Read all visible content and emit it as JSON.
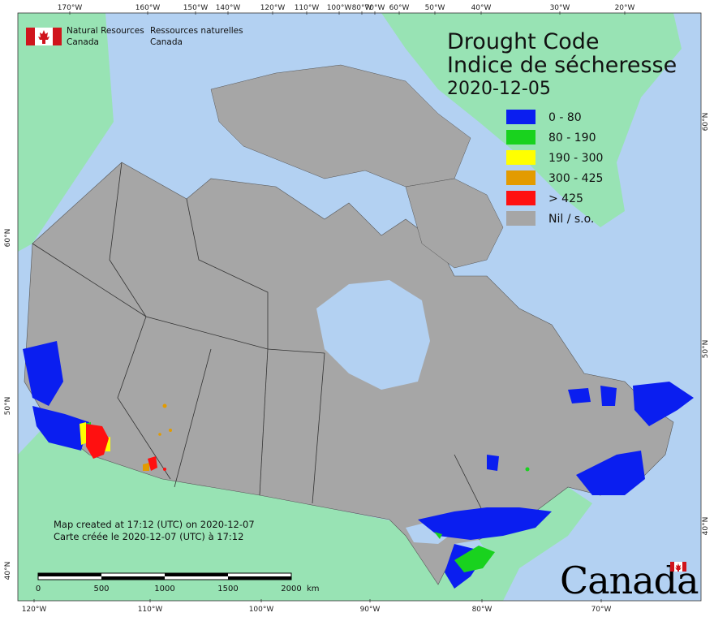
{
  "map": {
    "title_en": "Drought Code",
    "title_fr": "Indice de sécheresse",
    "date": "2020-12-05",
    "colors": {
      "ocean": "#b3d1f2",
      "land_foreign": "#98e3b4",
      "land_nodata": "#a6a6a6",
      "border": "#333333"
    }
  },
  "agency": {
    "name_en_line1": "Natural Resources",
    "name_en_line2": "Canada",
    "name_fr_line1": "Ressources naturelles",
    "name_fr_line2": "Canada"
  },
  "legend": [
    {
      "label": "0 - 80",
      "color": "#0a1ef0"
    },
    {
      "label": "80 - 190",
      "color": "#19d21e"
    },
    {
      "label": "190 - 300",
      "color": "#ffff00"
    },
    {
      "label": "300 - 425",
      "color": "#e39b00"
    },
    {
      "label": "> 425",
      "color": "#ff1010"
    },
    {
      "label": "Nil / s.o.",
      "color": "#a6a6a6"
    }
  ],
  "credit": {
    "line_en": "Map created at 17:12 (UTC) on 2020-12-07",
    "line_fr": "Carte créée le 2020-12-07 (UTC) à 17:12"
  },
  "scale_bar": {
    "labels": [
      "0",
      "500",
      "1000",
      "1500",
      "2000"
    ],
    "unit": "km"
  },
  "top_longitudes": [
    "170°W",
    "160°W",
    "150°W",
    "140°W",
    "120°W",
    "110°W",
    "100°W",
    "80°W",
    "70°W",
    "60°W",
    "50°W",
    "40°W",
    "30°W",
    "20°W"
  ],
  "bottom_longitudes": [
    "120°W",
    "110°W",
    "100°W",
    "90°W",
    "80°W",
    "70°W"
  ],
  "left_latitudes": [
    "60°N",
    "50°N",
    "40°N"
  ],
  "right_latitudes": [
    "60°N",
    "50°N",
    "40°N"
  ],
  "wordmark": "Canada"
}
